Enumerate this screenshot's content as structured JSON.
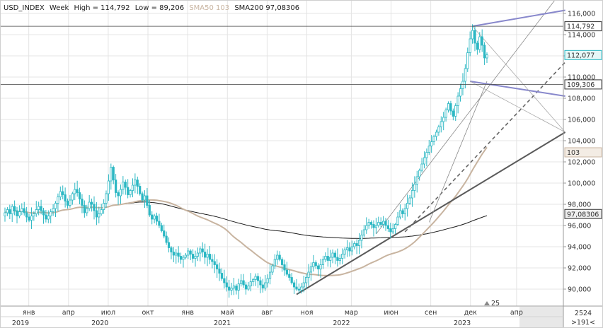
{
  "header": {
    "symbol": "USD_INDEX",
    "timeframe": "Week",
    "high_label": "High = 114,792",
    "low_label": "Low = 89,206",
    "sma50_label": "SMA50 103",
    "sma200_label": "SMA200 97,08306",
    "colors": {
      "text": "#1a1a1a",
      "sma50": "#c8b4a0",
      "sma200": "#1a1a1a"
    }
  },
  "chart_data": {
    "type": "candlestick",
    "ylim": [
      88.4,
      117.2
    ],
    "y_ticks": [
      90,
      92,
      94,
      96,
      98,
      100,
      102,
      104,
      106,
      108,
      110,
      112,
      114,
      116
    ],
    "y_tick_labels": [
      "90,000",
      "92,000",
      "94,000",
      "96,000",
      "98,000",
      "100,000",
      "102,000",
      "104,000",
      "106,000",
      "108,000",
      "110,000",
      "112,000",
      "114,000",
      "116,000"
    ],
    "price_tags": [
      {
        "label": "114,792",
        "value": 114.792,
        "bg": "#ffffff",
        "fg": "#111111",
        "border": "#333333"
      },
      {
        "label": "112,077",
        "value": 112.077,
        "bg": "#e6f7f7",
        "fg": "#111111",
        "border": "#2bb7c3"
      },
      {
        "label": "109,306",
        "value": 109.306,
        "bg": "#ffffff",
        "fg": "#111111",
        "border": "#333333"
      },
      {
        "label": "103",
        "value": 102.9,
        "bg": "#f3ece4",
        "fg": "#111111",
        "border": "#c8b4a0"
      },
      {
        "label": "97,08306",
        "value": 97.083,
        "bg": "#eeeeee",
        "fg": "#111111",
        "border": "#333333"
      }
    ],
    "horizontal_lines": [
      114.792,
      109.306
    ],
    "month_labels": [
      {
        "t": 0.15,
        "text": "янв"
      },
      {
        "t": 0.4,
        "text": "апр"
      },
      {
        "t": 0.65,
        "text": "июл"
      },
      {
        "t": 0.9,
        "text": "окт"
      },
      {
        "t": 1.15,
        "text": "янв"
      },
      {
        "t": 1.4,
        "text": "май"
      },
      {
        "t": 1.65,
        "text": "авг"
      },
      {
        "t": 1.9,
        "text": "ноя"
      },
      {
        "t": 2.18,
        "text": "мар"
      },
      {
        "t": 2.43,
        "text": "июн"
      },
      {
        "t": 2.68,
        "text": "сен"
      },
      {
        "t": 2.93,
        "text": "дек"
      },
      {
        "t": 3.22,
        "text": "апр"
      }
    ],
    "year_labels": [
      {
        "t": 0.0,
        "text": "2019"
      },
      {
        "t": 0.5,
        "text": "2020"
      },
      {
        "t": 1.27,
        "text": "2021"
      },
      {
        "t": 2.02,
        "text": "2022"
      },
      {
        "t": 2.78,
        "text": "2023"
      }
    ],
    "badge_25": "25",
    "future_label": "2023",
    "corner_top": "2524",
    "corner_bottom": ">191<",
    "colors": {
      "candle": "#2bb7c3",
      "sma50": "#c8b4a0",
      "sma200": "#1a1a1a",
      "trend_purple": "#8888cc",
      "trend_dark": "#5a5a5a",
      "grid": "#e4e4e4"
    },
    "closes": [
      97.2,
      97.5,
      97.1,
      97.8,
      97.4,
      96.9,
      97.3,
      97.6,
      97.2,
      96.8,
      96.5,
      96.9,
      97.1,
      97.5,
      97.8,
      97.4,
      97.0,
      96.6,
      96.9,
      97.3,
      97.6,
      98.1,
      98.7,
      99.2,
      98.9,
      98.3,
      97.9,
      98.4,
      99.0,
      99.4,
      99.1,
      98.5,
      97.9,
      97.2,
      97.6,
      98.2,
      98.0,
      97.4,
      96.8,
      97.1,
      97.5,
      98.1,
      99.0,
      100.2,
      101.5,
      100.3,
      99.1,
      98.8,
      99.4,
      100.1,
      99.6,
      98.9,
      99.3,
      99.8,
      100.3,
      99.7,
      99.0,
      98.4,
      98.8,
      97.9,
      97.0,
      96.6,
      96.9,
      96.4,
      96.0,
      95.5,
      95.0,
      94.4,
      93.9,
      93.5,
      93.2,
      93.4,
      93.1,
      92.8,
      93.0,
      93.2,
      93.6,
      93.3,
      92.9,
      93.1,
      93.4,
      93.8,
      93.5,
      93.0,
      93.3,
      92.8,
      92.6,
      92.3,
      91.9,
      91.5,
      91.0,
      90.6,
      90.2,
      89.9,
      90.1,
      90.3,
      89.9,
      90.5,
      90.8,
      90.4,
      90.0,
      90.3,
      90.7,
      90.9,
      91.2,
      90.8,
      90.4,
      90.1,
      90.6,
      91.0,
      91.6,
      92.2,
      92.8,
      93.2,
      92.8,
      92.3,
      91.8,
      91.4,
      91.1,
      90.6,
      90.2,
      90.0,
      89.9,
      90.2,
      90.6,
      91.1,
      91.6,
      92.1,
      92.5,
      92.2,
      91.9,
      92.3,
      92.8,
      93.1,
      92.7,
      93.0,
      93.4,
      93.0,
      92.7,
      92.9,
      93.3,
      93.7,
      93.9,
      93.6,
      94.0,
      94.3,
      94.1,
      94.6,
      95.1,
      95.6,
      96.0,
      96.3,
      96.1,
      95.8,
      96.0,
      96.3,
      96.1,
      96.4,
      96.0,
      95.7,
      95.4,
      95.7,
      96.1,
      96.8,
      97.4,
      97.1,
      97.6,
      98.1,
      98.6,
      99.3,
      99.9,
      100.6,
      101.2,
      101.8,
      102.4,
      102.9,
      103.5,
      103.9,
      104.4,
      104.8,
      105.3,
      105.8,
      106.2,
      106.9,
      107.5,
      106.8,
      106.3,
      107.3,
      108.2,
      108.9,
      109.6,
      110.8,
      112.3,
      113.6,
      114.4,
      113.2,
      112.6,
      113.8,
      113.0,
      111.8,
      112.1
    ]
  }
}
